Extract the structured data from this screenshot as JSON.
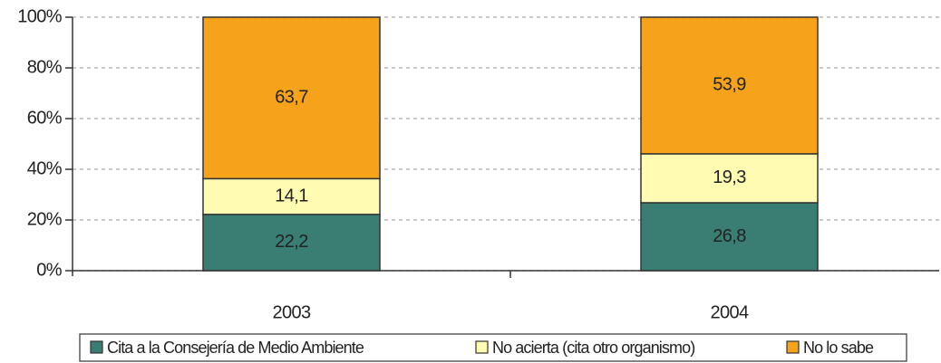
{
  "chart_data": {
    "type": "stacked_bar",
    "categories": [
      "2003",
      "2004"
    ],
    "series": [
      {
        "name": "Cita a la Consejería de Medio Ambiente",
        "color": "#3a7d72",
        "values": [
          22.2,
          26.8
        ],
        "value_labels": [
          "22,2",
          "26,8"
        ]
      },
      {
        "name": "No acierta (cita otro organismo)",
        "color": "#fffbb2",
        "values": [
          14.1,
          19.3
        ],
        "value_labels": [
          "14,1",
          "19,3"
        ]
      },
      {
        "name": "No lo sabe",
        "color": "#f6a31b",
        "values": [
          63.7,
          53.9
        ],
        "value_labels": [
          "63,7",
          "53,9"
        ]
      }
    ],
    "ylim": [
      0,
      100
    ],
    "yticks": [
      {
        "value": 0,
        "label": "0%"
      },
      {
        "value": 20,
        "label": "20%"
      },
      {
        "value": 40,
        "label": "40%"
      },
      {
        "value": 60,
        "label": "60%"
      },
      {
        "value": 80,
        "label": "80%"
      },
      {
        "value": 100,
        "label": "100%"
      }
    ],
    "grid": true,
    "legend": "bottom"
  }
}
